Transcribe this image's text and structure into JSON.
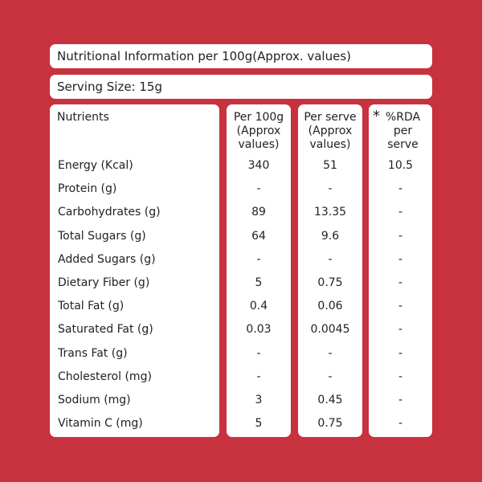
{
  "title": "Nutritional Information per 100g(Approx. values)",
  "serving_size": "Serving Size:  15g",
  "headers": {
    "nutrients": "Nutrients",
    "per100": [
      "Per 100g",
      "(Approx",
      "values)"
    ],
    "perserve": [
      "Per serve",
      "(Approx",
      "values)"
    ],
    "rda_star": "*",
    "rda": [
      "%RDA",
      "per",
      "serve"
    ]
  },
  "rows": [
    {
      "name": "Energy (Kcal)",
      "per100": "340",
      "perserve": "51",
      "rda": "10.5"
    },
    {
      "name": "Protein (g)",
      "per100": "-",
      "perserve": "-",
      "rda": "-"
    },
    {
      "name": "Carbohydrates (g)",
      "per100": "89",
      "perserve": "13.35",
      "rda": "-"
    },
    {
      "name": "Total Sugars (g)",
      "per100": "64",
      "perserve": "9.6",
      "rda": "-"
    },
    {
      "name": "Added Sugars (g)",
      "per100": "-",
      "perserve": "-",
      "rda": "-"
    },
    {
      "name": "Dietary Fiber (g)",
      "per100": "5",
      "perserve": "0.75",
      "rda": "-"
    },
    {
      "name": "Total Fat (g)",
      "per100": "0.4",
      "perserve": "0.06",
      "rda": "-"
    },
    {
      "name": "Saturated Fat (g)",
      "per100": "0.03",
      "perserve": "0.0045",
      "rda": "-"
    },
    {
      "name": "Trans Fat (g)",
      "per100": "-",
      "perserve": "-",
      "rda": "-"
    },
    {
      "name": "Cholesterol (mg)",
      "per100": "-",
      "perserve": "-",
      "rda": "-"
    },
    {
      "name": "Sodium (mg)",
      "per100": "3",
      "perserve": "0.45",
      "rda": "-"
    },
    {
      "name": "Vitamin C (mg)",
      "per100": "5",
      "perserve": "0.75",
      "rda": "-"
    }
  ],
  "colors": {
    "background": "#c8313e",
    "panel": "#ffffff",
    "text": "#222222"
  }
}
